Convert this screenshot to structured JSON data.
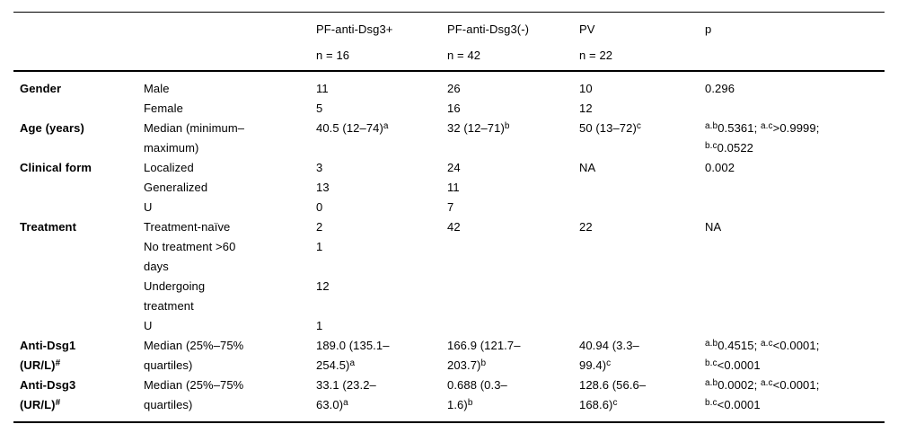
{
  "colors": {
    "text": "#000000",
    "background": "#ffffff",
    "rule": "#000000"
  },
  "table": {
    "header": {
      "columns": [
        {
          "label": "",
          "n": ""
        },
        {
          "label": "",
          "n": ""
        },
        {
          "label": "PF-anti-Dsg3+",
          "n": "n = 16"
        },
        {
          "label": "PF-anti-Dsg3(-)",
          "n": "n = 42"
        },
        {
          "label": "PV",
          "n": "n = 22"
        },
        {
          "label": "p",
          "n": ""
        }
      ]
    },
    "rows": [
      [
        "Gender",
        "Male",
        "11",
        "26",
        "10",
        "0.296"
      ],
      [
        "",
        "Female",
        "5",
        "16",
        "12",
        ""
      ],
      [
        "Age (years)",
        "Median (minimum–\nmaximum)",
        "40.5 (12–74)^{a}",
        "32 (12–71)^{b}",
        "50 (13–72)^{c}",
        "^{a.b}0.5361; ^{a.c}>0.9999;\n^{b.c}0.0522"
      ],
      [
        "Clinical form",
        "Localized",
        "3",
        "24",
        "NA",
        "0.002"
      ],
      [
        "",
        "Generalized",
        "13",
        "11",
        "",
        ""
      ],
      [
        "",
        "U",
        "0",
        "7",
        "",
        ""
      ],
      [
        "Treatment",
        "Treatment-naïve",
        "2",
        "42",
        "22",
        "NA"
      ],
      [
        "",
        "No treatment >60\ndays",
        "1",
        "",
        "",
        ""
      ],
      [
        "",
        "Undergoing\ntreatment",
        "12",
        "",
        "",
        ""
      ],
      [
        "",
        "U",
        "1",
        "",
        "",
        ""
      ],
      [
        "Anti-Dsg1\n(UR/L)^{#}",
        "Median (25%–75%\nquartiles)",
        "189.0 (135.1–\n254.5)^{a}",
        "166.9 (121.7–\n203.7)^{b}",
        "40.94 (3.3–\n99.4)^{c}",
        "^{a.b}0.4515; ^{a.c}<0.0001;\n^{b.c}<0.0001"
      ],
      [
        "Anti-Dsg3\n(UR/L)^{#}",
        "Median (25%–75%\nquartiles)",
        "33.1 (23.2–\n63.0)^{a}",
        "0.688 (0.3–\n1.6)^{b}",
        "128.6 (56.6–\n168.6)^{c}",
        "^{a.b}0.0002; ^{a.c}<0.0001;\n^{b.c}<0.0001"
      ]
    ]
  }
}
